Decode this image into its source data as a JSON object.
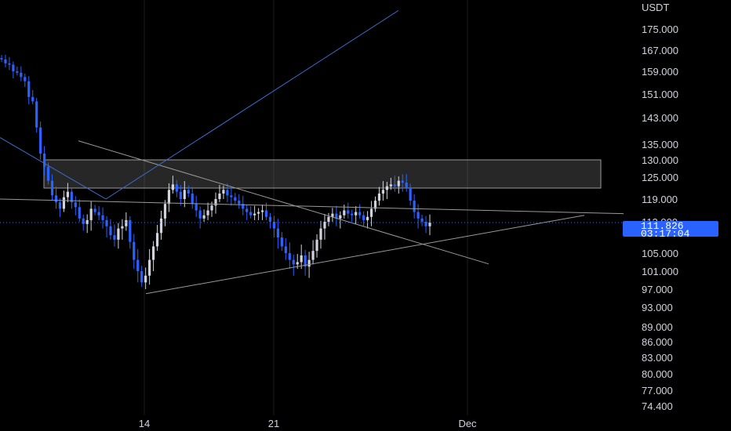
{
  "chart_data": {
    "type": "candlestick",
    "currency_label": "USDT",
    "y_ticks": [
      "175.000",
      "167.000",
      "159.000",
      "151.000",
      "143.000",
      "135.000",
      "130.000",
      "125.000",
      "119.000",
      "112.000",
      "105.000",
      "101.000",
      "97.000",
      "93.000",
      "89.000",
      "86.000",
      "83.000",
      "80.000",
      "77.000",
      "74.400"
    ],
    "x_ticks": [
      "14",
      "21",
      "Dec"
    ],
    "current_price": "111.826",
    "countdown": "03:17:04",
    "colors": {
      "up": "#d1d4dc",
      "down": "#2962ff",
      "grid": "#1c1c1c",
      "background": "#000000",
      "price_line": "#3a6fe0",
      "trendline_gray": "#9a9a9a",
      "trendline_blue": "#3d6fd0"
    },
    "closes": [
      163.5,
      162.0,
      161.5,
      159.0,
      158.5,
      157.0,
      155.5,
      150.0,
      148.5,
      140.0,
      132.0,
      128.0,
      124.0,
      120.0,
      118.0,
      116.0,
      119.5,
      121.0,
      118.0,
      116.5,
      113.0,
      111.5,
      112.5,
      116.0,
      115.0,
      114.0,
      112.5,
      111.0,
      109.0,
      108.0,
      110.5,
      111.0,
      112.5,
      107.5,
      103.5,
      101.0,
      98.5,
      100.0,
      103.5,
      106.5,
      109.5,
      113.0,
      117.5,
      121.5,
      123.0,
      121.0,
      119.0,
      121.5,
      120.5,
      117.5,
      115.5,
      113.0,
      114.0,
      115.5,
      117.0,
      119.0,
      120.5,
      121.5,
      120.0,
      119.5,
      118.5,
      117.5,
      116.0,
      115.0,
      114.0,
      114.5,
      115.0,
      115.5,
      113.5,
      112.0,
      110.5,
      108.5,
      106.5,
      105.0,
      103.5,
      102.5,
      103.0,
      104.5,
      102.0,
      103.5,
      105.5,
      108.0,
      110.5,
      112.0,
      113.5,
      114.5,
      113.0,
      114.0,
      115.5,
      114.5,
      114.0,
      115.0,
      114.0,
      112.5,
      113.5,
      116.0,
      118.5,
      120.5,
      121.5,
      122.5,
      123.0,
      122.5,
      124.0,
      123.5,
      122.0,
      118.5,
      115.0,
      113.0,
      112.0,
      111.0,
      111.826
    ]
  }
}
